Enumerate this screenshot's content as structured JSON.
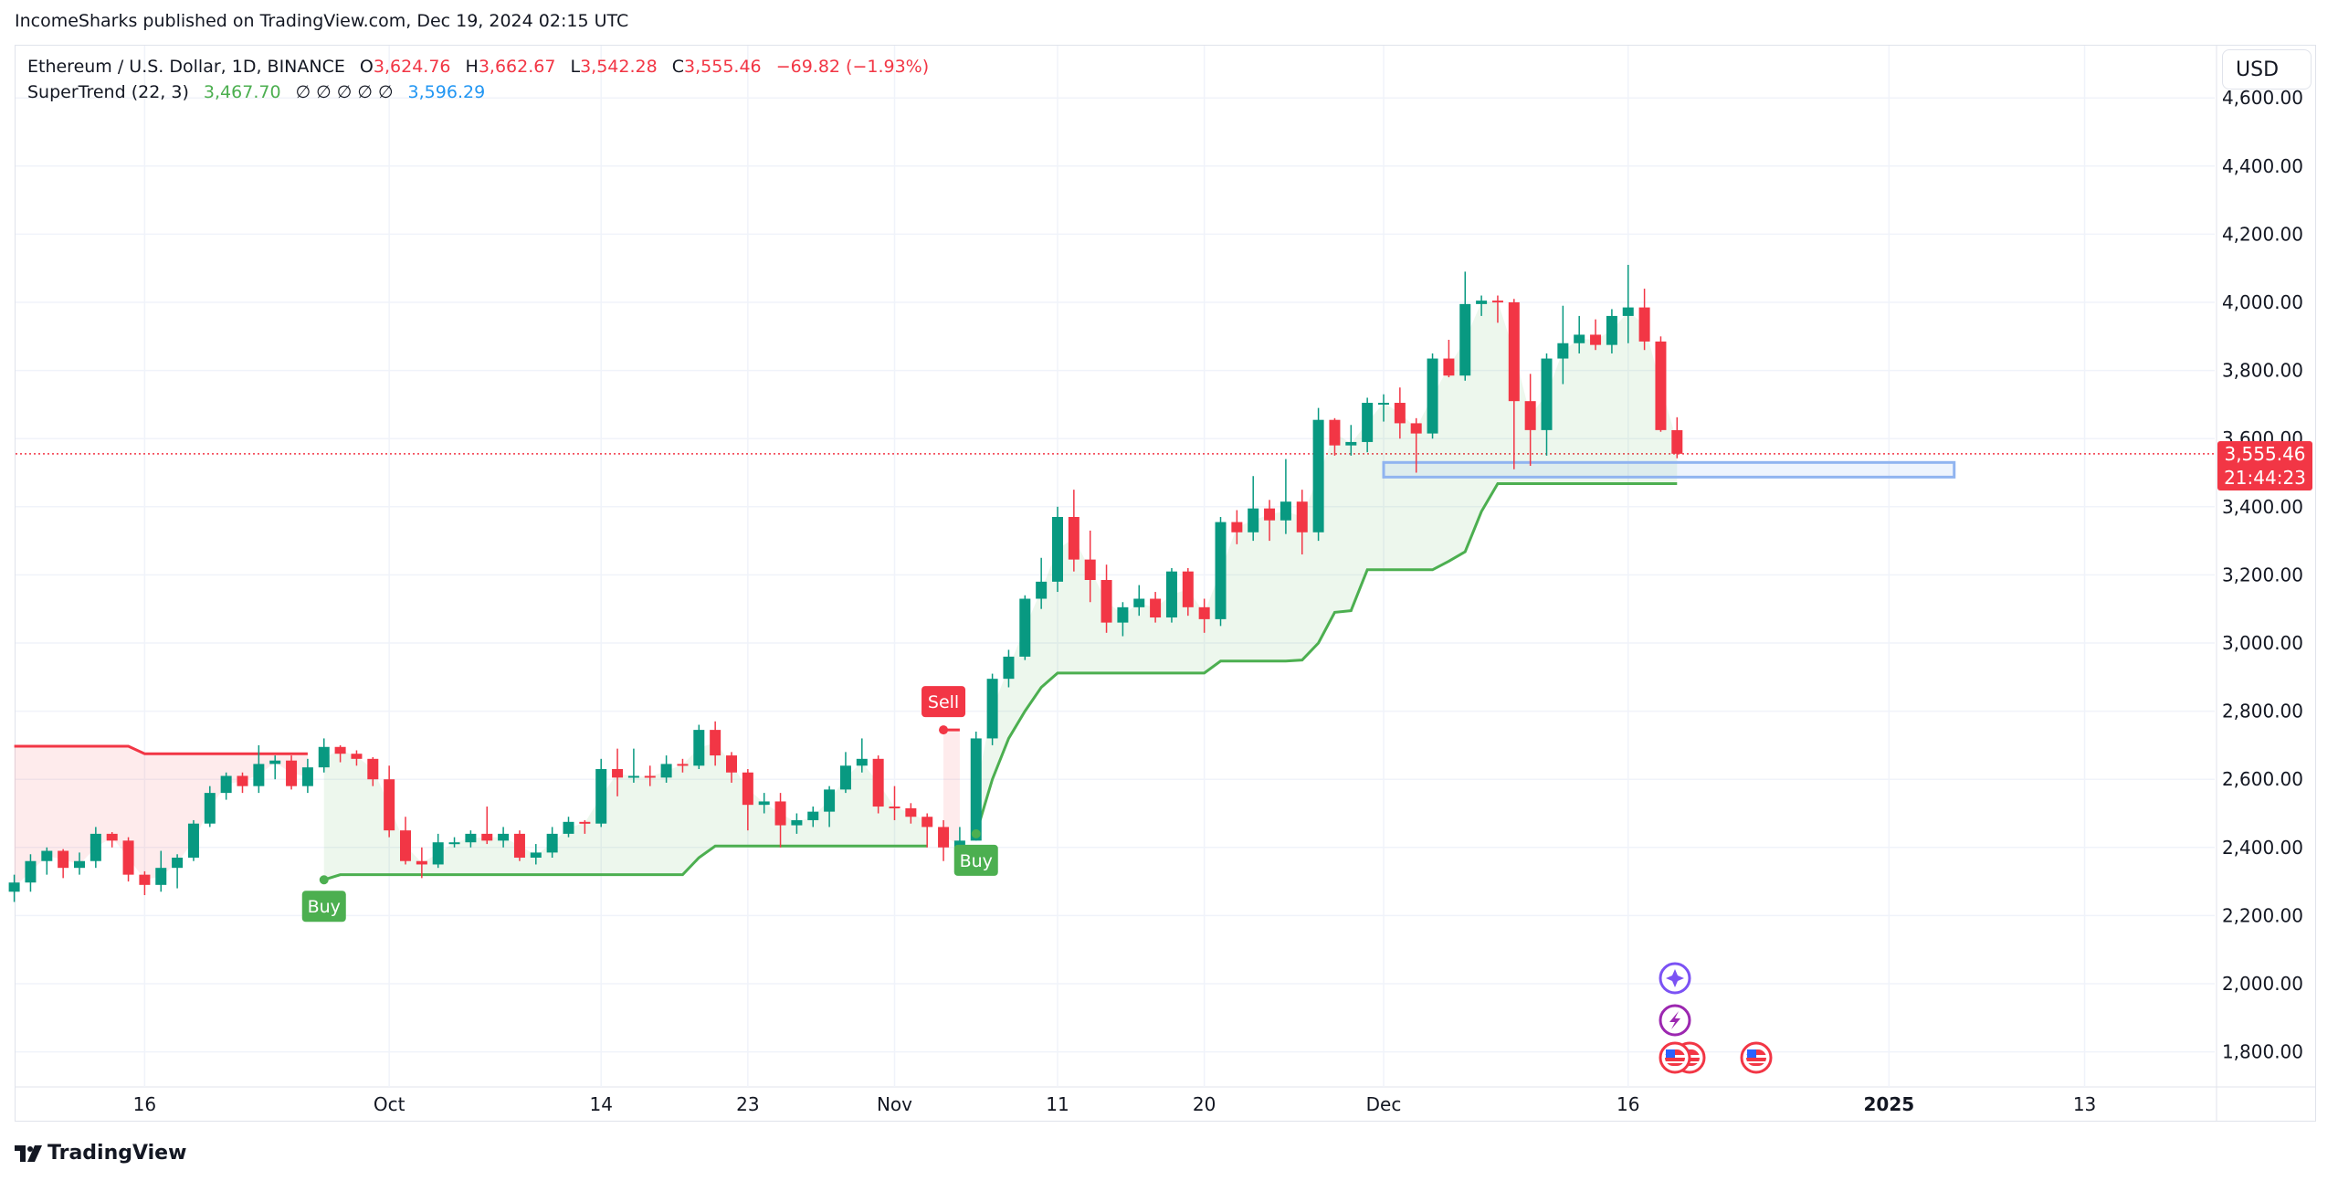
{
  "publish_line": "IncomeSharks published on TradingView.com, Dec 19, 2024 02:15 UTC",
  "legend": {
    "symbol": "Ethereum / U.S. Dollar, 1D, BINANCE",
    "open_label": "O",
    "open": "3,624.76",
    "high_label": "H",
    "high": "3,662.67",
    "low_label": "L",
    "low": "3,542.28",
    "close_label": "C",
    "close": "3,555.46",
    "change": "−69.82 (−1.93%)",
    "indicator": "SuperTrend (22, 3)",
    "indicator_value": "3,467.70",
    "indicator_empty": "∅ ∅ ∅ ∅ ∅",
    "indicator_value2": "3,596.29"
  },
  "currency_button": "USD",
  "last_price": {
    "price": "3,555.46",
    "countdown": "21:44:23",
    "value": 3555.46
  },
  "logo_text": "TradingView",
  "colors": {
    "up": "#089981",
    "down": "#f23645",
    "st_up": "#4caf50",
    "st_down": "#f23645",
    "zone": "#90b4f0"
  },
  "chart_data": {
    "type": "candlestick",
    "title": "Ethereum / U.S. Dollar, 1D, BINANCE",
    "start_date": "2024-09-08",
    "ylim": [
      1700,
      4700
    ],
    "y_ticks": [
      1800,
      2000,
      2200,
      2400,
      2600,
      2800,
      3000,
      3200,
      3400,
      3600,
      3800,
      4000,
      4200,
      4400,
      4600
    ],
    "y_tick_labels": [
      "1,800.00",
      "2,000.00",
      "2,200.00",
      "2,400.00",
      "2,600.00",
      "2,800.00",
      "3,000.00",
      "3,200.00",
      "3,400.00",
      "3,600.00",
      "3,800.00",
      "4,000.00",
      "4,200.00",
      "4,400.00",
      "4,600.00"
    ],
    "x_ticks": [
      {
        "label": "16",
        "date": "2024-09-16"
      },
      {
        "label": "Oct",
        "date": "2024-10-01"
      },
      {
        "label": "14",
        "date": "2024-10-14"
      },
      {
        "label": "23",
        "date": "2024-10-23"
      },
      {
        "label": "Nov",
        "date": "2024-11-01"
      },
      {
        "label": "11",
        "date": "2024-11-11"
      },
      {
        "label": "20",
        "date": "2024-11-20"
      },
      {
        "label": "Dec",
        "date": "2024-12-01"
      },
      {
        "label": "16",
        "date": "2024-12-16"
      },
      {
        "label": "2025",
        "date": "2025-01-01"
      },
      {
        "label": "13",
        "date": "2025-01-13"
      }
    ],
    "ohlc": [
      [
        2270,
        2320,
        2240,
        2297
      ],
      [
        2297,
        2380,
        2270,
        2360
      ],
      [
        2360,
        2400,
        2320,
        2390
      ],
      [
        2390,
        2395,
        2310,
        2340
      ],
      [
        2340,
        2385,
        2320,
        2360
      ],
      [
        2360,
        2460,
        2340,
        2440
      ],
      [
        2440,
        2445,
        2400,
        2420
      ],
      [
        2420,
        2430,
        2300,
        2320
      ],
      [
        2320,
        2330,
        2260,
        2290
      ],
      [
        2290,
        2390,
        2270,
        2340
      ],
      [
        2340,
        2380,
        2280,
        2370
      ],
      [
        2370,
        2480,
        2360,
        2470
      ],
      [
        2470,
        2580,
        2460,
        2560
      ],
      [
        2560,
        2620,
        2540,
        2610
      ],
      [
        2610,
        2620,
        2560,
        2580
      ],
      [
        2580,
        2700,
        2560,
        2645
      ],
      [
        2645,
        2670,
        2600,
        2655
      ],
      [
        2655,
        2670,
        2570,
        2580
      ],
      [
        2580,
        2660,
        2560,
        2635
      ],
      [
        2635,
        2720,
        2620,
        2695
      ],
      [
        2695,
        2700,
        2650,
        2675
      ],
      [
        2675,
        2685,
        2640,
        2660
      ],
      [
        2660,
        2665,
        2580,
        2600
      ],
      [
        2600,
        2640,
        2430,
        2450
      ],
      [
        2450,
        2490,
        2350,
        2360
      ],
      [
        2360,
        2400,
        2310,
        2350
      ],
      [
        2350,
        2440,
        2340,
        2415
      ],
      [
        2415,
        2430,
        2400,
        2415
      ],
      [
        2415,
        2450,
        2400,
        2440
      ],
      [
        2440,
        2520,
        2410,
        2420
      ],
      [
        2420,
        2460,
        2400,
        2440
      ],
      [
        2440,
        2450,
        2360,
        2370
      ],
      [
        2370,
        2410,
        2350,
        2385
      ],
      [
        2385,
        2460,
        2370,
        2440
      ],
      [
        2440,
        2490,
        2430,
        2475
      ],
      [
        2475,
        2480,
        2440,
        2470
      ],
      [
        2470,
        2660,
        2460,
        2630
      ],
      [
        2630,
        2690,
        2550,
        2605
      ],
      [
        2605,
        2690,
        2590,
        2610
      ],
      [
        2610,
        2640,
        2580,
        2605
      ],
      [
        2605,
        2670,
        2590,
        2645
      ],
      [
        2645,
        2660,
        2620,
        2640
      ],
      [
        2640,
        2760,
        2630,
        2745
      ],
      [
        2745,
        2770,
        2640,
        2670
      ],
      [
        2670,
        2680,
        2590,
        2620
      ],
      [
        2620,
        2630,
        2450,
        2525
      ],
      [
        2525,
        2560,
        2500,
        2535
      ],
      [
        2535,
        2560,
        2400,
        2465
      ],
      [
        2465,
        2500,
        2440,
        2480
      ],
      [
        2480,
        2520,
        2460,
        2505
      ],
      [
        2505,
        2580,
        2460,
        2570
      ],
      [
        2570,
        2680,
        2560,
        2640
      ],
      [
        2640,
        2720,
        2620,
        2660
      ],
      [
        2660,
        2670,
        2500,
        2520
      ],
      [
        2520,
        2580,
        2480,
        2515
      ],
      [
        2515,
        2530,
        2470,
        2490
      ],
      [
        2490,
        2500,
        2400,
        2460
      ],
      [
        2460,
        2480,
        2360,
        2400
      ],
      [
        2400,
        2460,
        2380,
        2420
      ],
      [
        2420,
        2740,
        2420,
        2720
      ],
      [
        2720,
        2910,
        2700,
        2895
      ],
      [
        2895,
        2980,
        2870,
        2960
      ],
      [
        2960,
        3140,
        2950,
        3130
      ],
      [
        3130,
        3250,
        3100,
        3180
      ],
      [
        3180,
        3400,
        3150,
        3370
      ],
      [
        3370,
        3450,
        3210,
        3245
      ],
      [
        3245,
        3330,
        3120,
        3185
      ],
      [
        3185,
        3230,
        3030,
        3060
      ],
      [
        3060,
        3120,
        3020,
        3105
      ],
      [
        3105,
        3170,
        3080,
        3130
      ],
      [
        3130,
        3150,
        3060,
        3075
      ],
      [
        3075,
        3220,
        3060,
        3210
      ],
      [
        3210,
        3220,
        3080,
        3105
      ],
      [
        3105,
        3130,
        3030,
        3070
      ],
      [
        3070,
        3370,
        3050,
        3355
      ],
      [
        3355,
        3390,
        3290,
        3325
      ],
      [
        3325,
        3490,
        3300,
        3395
      ],
      [
        3395,
        3420,
        3300,
        3360
      ],
      [
        3360,
        3540,
        3320,
        3415
      ],
      [
        3415,
        3450,
        3260,
        3325
      ],
      [
        3325,
        3690,
        3300,
        3655
      ],
      [
        3655,
        3660,
        3550,
        3580
      ],
      [
        3580,
        3640,
        3550,
        3590
      ],
      [
        3590,
        3720,
        3560,
        3705
      ],
      [
        3705,
        3730,
        3650,
        3705
      ],
      [
        3705,
        3750,
        3600,
        3645
      ],
      [
        3645,
        3660,
        3500,
        3615
      ],
      [
        3615,
        3850,
        3600,
        3835
      ],
      [
        3835,
        3890,
        3780,
        3785
      ],
      [
        3785,
        4090,
        3770,
        3995
      ],
      [
        3995,
        4020,
        3960,
        4005
      ],
      [
        4005,
        4020,
        3940,
        4000
      ],
      [
        4000,
        4010,
        3510,
        3710
      ],
      [
        3710,
        3790,
        3520,
        3625
      ],
      [
        3625,
        3850,
        3550,
        3835
      ],
      [
        3835,
        3990,
        3760,
        3880
      ],
      [
        3880,
        3960,
        3850,
        3905
      ],
      [
        3905,
        3950,
        3860,
        3875
      ],
      [
        3875,
        3980,
        3850,
        3960
      ],
      [
        3960,
        4110,
        3880,
        3985
      ],
      [
        3985,
        4040,
        3860,
        3885
      ],
      [
        3885,
        3900,
        3620,
        3625
      ],
      [
        3624.76,
        3662.67,
        3542.28,
        3555.46
      ]
    ],
    "supertrend_runs": [
      {
        "dir": "down",
        "values": [
          2697,
          2697,
          2697,
          2697,
          2697,
          2697,
          2697,
          2697,
          2675,
          2675,
          2675,
          2675,
          2675,
          2675,
          2675,
          2675,
          2675,
          2675,
          2675
        ]
      },
      {
        "dir": "up",
        "values": [
          2305,
          2320,
          2320,
          2320,
          2320,
          2320,
          2320,
          2320,
          2320,
          2320,
          2320,
          2320,
          2320,
          2320,
          2320,
          2320,
          2320,
          2320,
          2320,
          2320,
          2320,
          2320,
          2320,
          2370,
          2404,
          2404,
          2404,
          2404,
          2404,
          2404,
          2404,
          2404,
          2404,
          2404,
          2404,
          2404,
          2404,
          2404
        ]
      },
      {
        "dir": "down",
        "values": [
          2745,
          2745
        ]
      },
      {
        "dir": "up",
        "values": [
          2440,
          2600,
          2720,
          2800,
          2870,
          2912,
          2912,
          2912,
          2912,
          2912,
          2912,
          2912,
          2912,
          2912,
          2912,
          2947,
          2947,
          2947,
          2947,
          2947,
          2950,
          3000,
          3090,
          3095,
          3215,
          3215,
          3215,
          3215,
          3215,
          3240,
          3268,
          3386,
          3467.7,
          3467.7,
          3467.7,
          3467.7,
          3467.7,
          3467.7,
          3467.7,
          3467.7,
          3467.7,
          3467.7,
          3467.7,
          3467.7
        ]
      }
    ],
    "signals": [
      {
        "label": "Buy",
        "index": 19,
        "price": 2305,
        "type": "buy"
      },
      {
        "label": "Sell",
        "index": 57,
        "price": 2745,
        "type": "sell"
      },
      {
        "label": "Buy",
        "index": 59,
        "price": 2440,
        "type": "buy"
      }
    ],
    "zone": {
      "from": "2024-12-01",
      "to": "2025-01-05",
      "top": 3530,
      "bottom": 3487
    }
  }
}
